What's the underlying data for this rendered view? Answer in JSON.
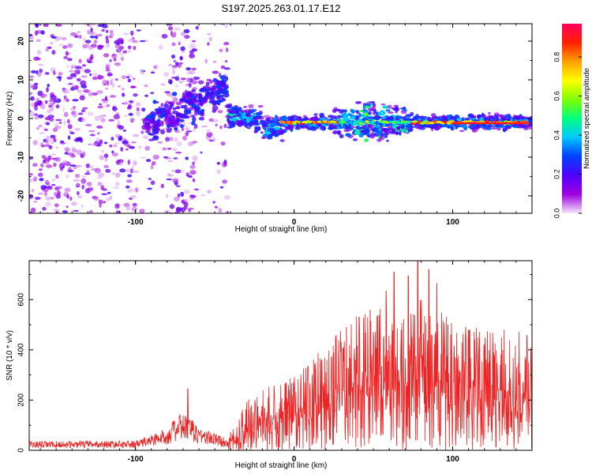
{
  "title": "S197.2025.263.01.17.E12",
  "chart_data": [
    {
      "type": "heatmap",
      "name": "spectrogram",
      "xlabel": "Height of straight line (km)",
      "ylabel": "Frequency (Hz)",
      "xlim": [
        -167,
        150
      ],
      "ylim": [
        -24.5,
        24.5
      ],
      "xticks": [
        -100,
        0,
        100
      ],
      "xtick_labels": [
        "-100",
        "0",
        "100"
      ],
      "yticks": [
        -20,
        -10,
        0,
        10,
        20
      ],
      "ytick_labels": [
        "-20",
        "-10",
        "0",
        "10",
        "20"
      ],
      "colorbar": {
        "label": "Normalized spectral amplitude",
        "range": [
          0,
          0.97
        ],
        "ticks": [
          0.0,
          0.2,
          0.4,
          0.6,
          0.8
        ],
        "tick_labels": [
          "0.0",
          "0.2",
          "0.4",
          "0.6",
          "0.8"
        ],
        "colors": [
          "#f2e6fa",
          "#a000e0",
          "#5000ff",
          "#0040ff",
          "#00c8ff",
          "#00ff80",
          "#80ff00",
          "#ffff00",
          "#ffa000",
          "#ff2000",
          "#ff0060"
        ]
      },
      "features": [
        {
          "name": "broadband noise",
          "x_range": [
            -167,
            -42
          ],
          "y_range": [
            -24,
            24
          ],
          "amplitude": 0.15
        },
        {
          "name": "rising transition",
          "x_range": [
            -95,
            -42
          ],
          "y_range": [
            -4,
            12
          ],
          "amplitude": 0.25
        },
        {
          "name": "main band",
          "x_range": [
            -42,
            150
          ],
          "center_hz": -1,
          "amplitude_peak": 0.95
        }
      ]
    },
    {
      "type": "line",
      "name": "snr",
      "xlabel": "Height of straight line (km)",
      "ylabel": "SNR (10 * v/v)",
      "xlim": [
        -167,
        150
      ],
      "ylim": [
        0,
        755
      ],
      "xticks": [
        -100,
        0,
        100
      ],
      "xtick_labels": [
        "-100",
        "0",
        "100"
      ],
      "yticks": [
        0,
        200,
        400,
        600
      ],
      "ytick_labels": [
        "0",
        "200",
        "400",
        "600"
      ],
      "color": "#ee2222",
      "envelope": [
        {
          "x": -167,
          "y": 30
        },
        {
          "x": -100,
          "y": 32
        },
        {
          "x": -82,
          "y": 70
        },
        {
          "x": -70,
          "y": 130
        },
        {
          "x": -60,
          "y": 80
        },
        {
          "x": -42,
          "y": 40
        },
        {
          "x": -30,
          "y": 140
        },
        {
          "x": -15,
          "y": 200
        },
        {
          "x": 0,
          "y": 215
        },
        {
          "x": 20,
          "y": 300
        },
        {
          "x": 40,
          "y": 390
        },
        {
          "x": 60,
          "y": 420
        },
        {
          "x": 80,
          "y": 430
        },
        {
          "x": 100,
          "y": 380
        },
        {
          "x": 120,
          "y": 350
        },
        {
          "x": 150,
          "y": 340
        }
      ],
      "peaks": [
        {
          "x": -67,
          "y": 245
        },
        {
          "x": 33,
          "y": 490
        },
        {
          "x": 41,
          "y": 530
        },
        {
          "x": 48,
          "y": 560
        },
        {
          "x": 58,
          "y": 635
        },
        {
          "x": 63,
          "y": 710
        },
        {
          "x": 72,
          "y": 695
        },
        {
          "x": 78,
          "y": 755
        },
        {
          "x": 85,
          "y": 720
        },
        {
          "x": 90,
          "y": 665
        },
        {
          "x": 97,
          "y": 500
        },
        {
          "x": 110,
          "y": 480
        }
      ]
    }
  ]
}
